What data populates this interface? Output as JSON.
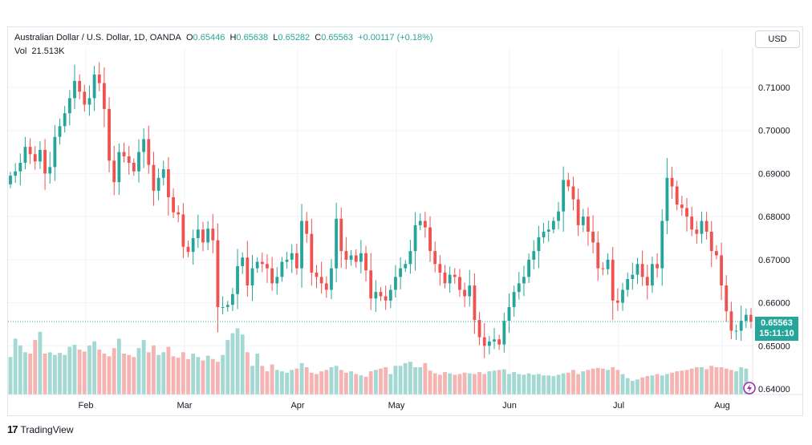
{
  "legend": {
    "symbol": "Australian Dollar / U.S. Dollar, 1D, OANDA",
    "o_label": "O",
    "o_value": "0.65446",
    "h_label": "H",
    "h_value": "0.65638",
    "l_label": "L",
    "l_value": "0.65282",
    "c_label": "C",
    "c_value": "0.65563",
    "change": "+0.00117 (+0.18%)",
    "vol_label": "Vol",
    "vol_value": "21.513K"
  },
  "currency_button": "USD",
  "last_price": "0.65563",
  "countdown": "15:11:10",
  "footer": {
    "logo_glyph": "17",
    "brand": "TradingView"
  },
  "colors": {
    "up": "#26a69a",
    "down": "#ef5350",
    "up_vol": "#a4d8d3",
    "down_vol": "#f5b3b1",
    "grid": "#f0f3fa"
  },
  "chart_data": {
    "type": "candlestick",
    "title": "Australian Dollar / U.S. Dollar, 1D, OANDA",
    "y_ticks": [
      "0.71000",
      "0.70000",
      "0.69000",
      "0.68000",
      "0.67000",
      "0.66000",
      "0.65000",
      "0.64000"
    ],
    "x_ticks": [
      "Feb",
      "Mar",
      "Apr",
      "May",
      "Jun",
      "Jul",
      "Aug"
    ],
    "ylim": [
      0.64,
      0.712
    ],
    "grid": true,
    "close_series": [
      0.6895,
      0.6905,
      0.6925,
      0.6962,
      0.6945,
      0.6928,
      0.6955,
      0.69,
      0.6915,
      0.6985,
      0.701,
      0.704,
      0.7075,
      0.7115,
      0.709,
      0.706,
      0.7075,
      0.713,
      0.711,
      0.705,
      0.693,
      0.688,
      0.695,
      0.694,
      0.6925,
      0.6905,
      0.695,
      0.698,
      0.692,
      0.686,
      0.689,
      0.691,
      0.6845,
      0.681,
      0.6805,
      0.673,
      0.6718,
      0.675,
      0.677,
      0.674,
      0.6772,
      0.6745,
      0.659,
      0.659,
      0.6595,
      0.662,
      0.6685,
      0.6705,
      0.664,
      0.668,
      0.6695,
      0.669,
      0.668,
      0.6645,
      0.666,
      0.6695,
      0.67,
      0.6715,
      0.668,
      0.679,
      0.676,
      0.667,
      0.666,
      0.6645,
      0.663,
      0.668,
      0.6795,
      0.672,
      0.67,
      0.671,
      0.6695,
      0.6715,
      0.6675,
      0.661,
      0.6625,
      0.6615,
      0.6605,
      0.663,
      0.666,
      0.668,
      0.669,
      0.672,
      0.678,
      0.679,
      0.6775,
      0.672,
      0.669,
      0.667,
      0.6645,
      0.6665,
      0.666,
      0.663,
      0.6615,
      0.664,
      0.656,
      0.652,
      0.65,
      0.651,
      0.6515,
      0.6503,
      0.6558,
      0.659,
      0.6625,
      0.6645,
      0.666,
      0.67,
      0.672,
      0.6752,
      0.6765,
      0.677,
      0.679,
      0.6812,
      0.6885,
      0.687,
      0.684,
      0.678,
      0.68,
      0.6765,
      0.674,
      0.668,
      0.6678,
      0.67,
      0.6605,
      0.66,
      0.663,
      0.6655,
      0.6665,
      0.669,
      0.666,
      0.664,
      0.669,
      0.668,
      0.679,
      0.689,
      0.687,
      0.6828,
      0.682,
      0.68,
      0.677,
      0.676,
      0.679,
      0.6765,
      0.672,
      0.671,
      0.664,
      0.658,
      0.6535,
      0.6535,
      0.6558,
      0.6572,
      0.6556
    ],
    "volume_series": [
      0.55,
      0.82,
      0.72,
      0.62,
      0.6,
      0.8,
      0.92,
      0.6,
      0.62,
      0.58,
      0.61,
      0.58,
      0.7,
      0.73,
      0.66,
      0.63,
      0.72,
      0.78,
      0.66,
      0.6,
      0.56,
      0.68,
      0.82,
      0.6,
      0.58,
      0.55,
      0.68,
      0.8,
      0.62,
      0.72,
      0.58,
      0.62,
      0.7,
      0.56,
      0.54,
      0.62,
      0.52,
      0.6,
      0.55,
      0.5,
      0.57,
      0.52,
      0.48,
      0.58,
      0.8,
      0.9,
      0.97,
      0.88,
      0.62,
      0.42,
      0.6,
      0.42,
      0.34,
      0.44,
      0.36,
      0.34,
      0.32,
      0.36,
      0.38,
      0.46,
      0.4,
      0.32,
      0.3,
      0.34,
      0.36,
      0.4,
      0.42,
      0.36,
      0.32,
      0.34,
      0.3,
      0.28,
      0.26,
      0.34,
      0.36,
      0.38,
      0.4,
      0.3,
      0.42,
      0.42,
      0.46,
      0.48,
      0.4,
      0.4,
      0.46,
      0.35,
      0.31,
      0.29,
      0.33,
      0.31,
      0.29,
      0.3,
      0.32,
      0.31,
      0.3,
      0.33,
      0.3,
      0.34,
      0.35,
      0.36,
      0.37,
      0.3,
      0.33,
      0.3,
      0.29,
      0.31,
      0.29,
      0.3,
      0.28,
      0.28,
      0.27,
      0.29,
      0.31,
      0.32,
      0.36,
      0.3,
      0.34,
      0.36,
      0.38,
      0.39,
      0.38,
      0.36,
      0.4,
      0.36,
      0.3,
      0.24,
      0.2,
      0.22,
      0.25,
      0.27,
      0.28,
      0.3,
      0.28,
      0.3,
      0.32,
      0.34,
      0.35,
      0.36,
      0.38,
      0.4,
      0.4,
      0.37,
      0.42,
      0.4,
      0.4,
      0.38,
      0.36,
      0.34,
      0.4,
      0.38
    ]
  }
}
